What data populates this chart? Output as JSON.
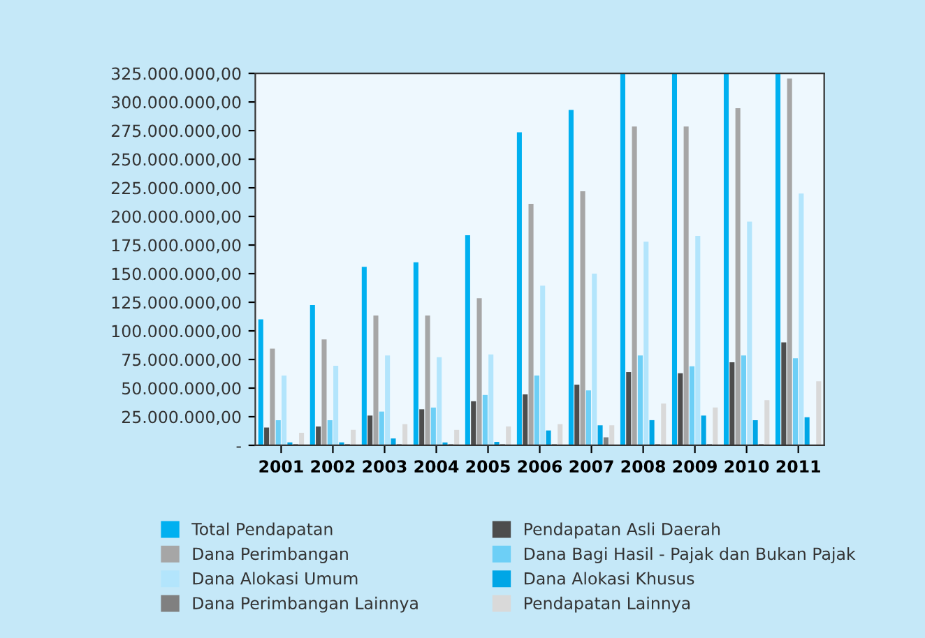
{
  "chart_data": {
    "type": "bar",
    "categories": [
      "2001",
      "2002",
      "2003",
      "2004",
      "2005",
      "2006",
      "2007",
      "2008",
      "2009",
      "2010",
      "2011"
    ],
    "series": [
      {
        "name": "Total Pendapatan",
        "color": "#00b0f0",
        "values": [
          110000000,
          122500000,
          156000000,
          160000000,
          183500000,
          273500000,
          293000000,
          325000000,
          325000000,
          325000000,
          325000000
        ]
      },
      {
        "name": "Pendapatan Asli Daerah",
        "color": "#4d4d4d",
        "values": [
          15500000,
          16500000,
          26000000,
          31500000,
          38500000,
          44500000,
          53000000,
          64000000,
          63000000,
          72500000,
          90000000
        ]
      },
      {
        "name": "Dana Perimbangan",
        "color": "#a6a6a6",
        "values": [
          84500000,
          92500000,
          113500000,
          113500000,
          128500000,
          211000000,
          222000000,
          278500000,
          278500000,
          294500000,
          320500000
        ]
      },
      {
        "name": "Dana Bagi Hasil - Pajak dan Bukan Pajak",
        "color": "#6dcff6",
        "values": [
          22000000,
          22000000,
          29500000,
          33000000,
          44000000,
          61000000,
          48000000,
          78500000,
          69000000,
          78500000,
          76000000
        ]
      },
      {
        "name": "Dana Alokasi Umum",
        "color": "#b3e5fc",
        "values": [
          61000000,
          69500000,
          78500000,
          77000000,
          79500000,
          139500000,
          150000000,
          178000000,
          183000000,
          195500000,
          220000000
        ]
      },
      {
        "name": "Dana Alokasi Khusus",
        "color": "#00a6e6",
        "values": [
          2500000,
          2500000,
          6000000,
          2500000,
          3000000,
          13000000,
          17500000,
          22000000,
          26000000,
          22000000,
          24500000
        ]
      },
      {
        "name": "Dana Perimbangan Lainnya",
        "color": "#808080",
        "values": [
          1000000,
          1000000,
          1000000,
          1000000,
          1000000,
          1000000,
          7000000,
          1000000,
          1000000,
          1000000,
          null
        ]
      },
      {
        "name": "Pendapatan Lainnya",
        "color": "#d9d9d9",
        "values": [
          11000000,
          13500000,
          18500000,
          13500000,
          16500000,
          18500000,
          17500000,
          36500000,
          33000000,
          39500000,
          56000000
        ]
      }
    ],
    "ylim": [
      0,
      325000000
    ],
    "yticks": [
      {
        "value": 0,
        "label": "-"
      },
      {
        "value": 25000000,
        "label": "25.000.000,00"
      },
      {
        "value": 50000000,
        "label": "50.000.000,00"
      },
      {
        "value": 75000000,
        "label": "75.000.000,00"
      },
      {
        "value": 100000000,
        "label": "100.000.000,00"
      },
      {
        "value": 125000000,
        "label": "125.000.000,00"
      },
      {
        "value": 150000000,
        "label": "150.000.000,00"
      },
      {
        "value": 175000000,
        "label": "175.000.000,00"
      },
      {
        "value": 200000000,
        "label": "200.000.000,00"
      },
      {
        "value": 225000000,
        "label": "225.000.000,00"
      },
      {
        "value": 250000000,
        "label": "250.000.000,00"
      },
      {
        "value": 275000000,
        "label": "275.000.000,00"
      },
      {
        "value": 300000000,
        "label": "300.000.000,00"
      },
      {
        "value": 325000000,
        "label": "325.000.000,00"
      }
    ],
    "grid": false,
    "legend": "bottom"
  }
}
